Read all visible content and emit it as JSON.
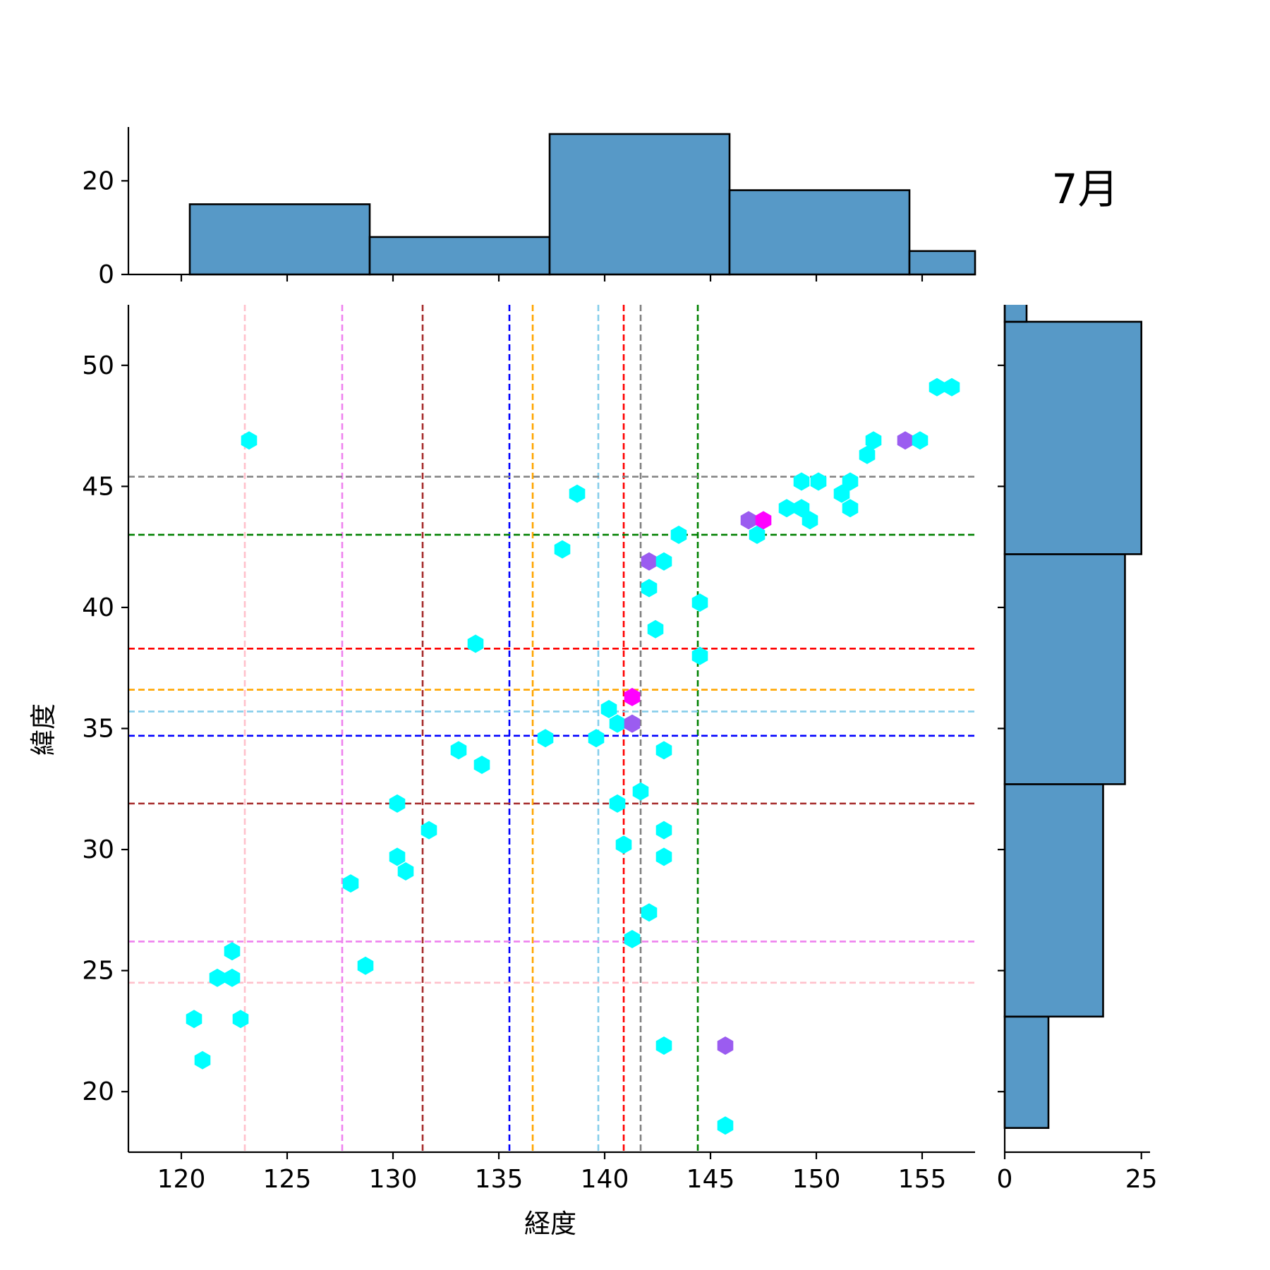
{
  "chart_data": {
    "type": "scatter",
    "subtype": "jointplot-hexbin-with-marginal-histograms",
    "annotation": "7月",
    "xlabel": "経度",
    "ylabel": "緯度",
    "xlim": [
      117.5,
      157.5
    ],
    "ylim": [
      17.5,
      52.5
    ],
    "xticks": [
      120,
      125,
      130,
      135,
      140,
      145,
      150,
      155
    ],
    "yticks": [
      20,
      25,
      30,
      35,
      40,
      45,
      50
    ],
    "grid": false,
    "hex_colors": {
      "low": "#00ffff",
      "mid": "#9b5cf0",
      "high": "#ff00ff"
    },
    "hex_points": [
      {
        "x": 123.2,
        "y": 46.9,
        "level": "low"
      },
      {
        "x": 120.6,
        "y": 23.0,
        "level": "low"
      },
      {
        "x": 121.0,
        "y": 21.3,
        "level": "low"
      },
      {
        "x": 121.7,
        "y": 24.7,
        "level": "low"
      },
      {
        "x": 122.4,
        "y": 24.7,
        "level": "low"
      },
      {
        "x": 122.4,
        "y": 25.8,
        "level": "low"
      },
      {
        "x": 122.8,
        "y": 23.0,
        "level": "low"
      },
      {
        "x": 128.0,
        "y": 28.6,
        "level": "low"
      },
      {
        "x": 128.7,
        "y": 25.2,
        "level": "low"
      },
      {
        "x": 130.2,
        "y": 31.9,
        "level": "low"
      },
      {
        "x": 130.2,
        "y": 29.7,
        "level": "low"
      },
      {
        "x": 130.6,
        "y": 29.1,
        "level": "low"
      },
      {
        "x": 131.7,
        "y": 30.8,
        "level": "low"
      },
      {
        "x": 133.1,
        "y": 34.1,
        "level": "low"
      },
      {
        "x": 134.2,
        "y": 33.5,
        "level": "low"
      },
      {
        "x": 133.9,
        "y": 38.5,
        "level": "low"
      },
      {
        "x": 137.2,
        "y": 34.6,
        "level": "low"
      },
      {
        "x": 138.0,
        "y": 42.4,
        "level": "low"
      },
      {
        "x": 138.7,
        "y": 44.7,
        "level": "low"
      },
      {
        "x": 139.6,
        "y": 34.6,
        "level": "low"
      },
      {
        "x": 140.2,
        "y": 35.8,
        "level": "low"
      },
      {
        "x": 140.6,
        "y": 35.2,
        "level": "low"
      },
      {
        "x": 140.6,
        "y": 31.9,
        "level": "low"
      },
      {
        "x": 140.9,
        "y": 30.2,
        "level": "low"
      },
      {
        "x": 141.3,
        "y": 36.3,
        "level": "high"
      },
      {
        "x": 141.3,
        "y": 35.2,
        "level": "mid"
      },
      {
        "x": 141.3,
        "y": 26.3,
        "level": "low"
      },
      {
        "x": 141.7,
        "y": 32.4,
        "level": "low"
      },
      {
        "x": 142.1,
        "y": 27.4,
        "level": "low"
      },
      {
        "x": 142.1,
        "y": 40.8,
        "level": "low"
      },
      {
        "x": 142.1,
        "y": 41.9,
        "level": "mid"
      },
      {
        "x": 142.4,
        "y": 39.1,
        "level": "low"
      },
      {
        "x": 142.8,
        "y": 41.9,
        "level": "low"
      },
      {
        "x": 142.8,
        "y": 34.1,
        "level": "low"
      },
      {
        "x": 142.8,
        "y": 30.8,
        "level": "low"
      },
      {
        "x": 142.8,
        "y": 29.7,
        "level": "low"
      },
      {
        "x": 142.8,
        "y": 21.9,
        "level": "low"
      },
      {
        "x": 143.5,
        "y": 43.0,
        "level": "low"
      },
      {
        "x": 144.5,
        "y": 40.2,
        "level": "low"
      },
      {
        "x": 144.5,
        "y": 38.0,
        "level": "low"
      },
      {
        "x": 145.7,
        "y": 21.9,
        "level": "mid"
      },
      {
        "x": 145.7,
        "y": 18.6,
        "level": "low"
      },
      {
        "x": 146.8,
        "y": 43.6,
        "level": "mid"
      },
      {
        "x": 147.2,
        "y": 43.0,
        "level": "low"
      },
      {
        "x": 147.5,
        "y": 43.6,
        "level": "high"
      },
      {
        "x": 148.6,
        "y": 44.1,
        "level": "low"
      },
      {
        "x": 149.3,
        "y": 44.1,
        "level": "low"
      },
      {
        "x": 149.3,
        "y": 45.2,
        "level": "low"
      },
      {
        "x": 149.7,
        "y": 43.6,
        "level": "low"
      },
      {
        "x": 150.1,
        "y": 45.2,
        "level": "low"
      },
      {
        "x": 151.2,
        "y": 44.7,
        "level": "low"
      },
      {
        "x": 151.6,
        "y": 44.1,
        "level": "low"
      },
      {
        "x": 151.6,
        "y": 45.2,
        "level": "low"
      },
      {
        "x": 152.4,
        "y": 46.3,
        "level": "low"
      },
      {
        "x": 152.7,
        "y": 46.9,
        "level": "low"
      },
      {
        "x": 154.2,
        "y": 46.9,
        "level": "mid"
      },
      {
        "x": 154.9,
        "y": 46.9,
        "level": "low"
      },
      {
        "x": 155.7,
        "y": 49.1,
        "level": "low"
      },
      {
        "x": 156.4,
        "y": 49.1,
        "level": "low"
      }
    ],
    "vlines": [
      {
        "x": 123.0,
        "color": "#ffc0cb"
      },
      {
        "x": 127.6,
        "color": "#ee82ee"
      },
      {
        "x": 131.4,
        "color": "#a52a2a"
      },
      {
        "x": 135.5,
        "color": "#0000ff"
      },
      {
        "x": 136.6,
        "color": "#ffa500"
      },
      {
        "x": 139.7,
        "color": "#87ceeb"
      },
      {
        "x": 140.9,
        "color": "#ff0000"
      },
      {
        "x": 141.7,
        "color": "#808080"
      },
      {
        "x": 144.4,
        "color": "#008000"
      }
    ],
    "hlines": [
      {
        "y": 45.4,
        "color": "#808080"
      },
      {
        "y": 43.0,
        "color": "#008000"
      },
      {
        "y": 38.3,
        "color": "#ff0000"
      },
      {
        "y": 36.6,
        "color": "#ffa500"
      },
      {
        "y": 35.7,
        "color": "#87ceeb"
      },
      {
        "y": 34.7,
        "color": "#0000ff"
      },
      {
        "y": 31.9,
        "color": "#a52a2a"
      },
      {
        "y": 26.2,
        "color": "#ee82ee"
      },
      {
        "y": 24.5,
        "color": "#ffc0cb"
      }
    ],
    "top_histogram": {
      "yticks": [
        0,
        20
      ],
      "bins": [
        {
          "x0": 120.4,
          "x1": 128.9,
          "count": 15
        },
        {
          "x0": 128.9,
          "x1": 137.4,
          "count": 8
        },
        {
          "x0": 137.4,
          "x1": 145.9,
          "count": 30
        },
        {
          "x0": 145.9,
          "x1": 154.4,
          "count": 18
        },
        {
          "x0": 154.4,
          "x1": 162.9,
          "count": 5
        }
      ],
      "ylim": [
        0,
        31.5
      ]
    },
    "right_histogram": {
      "xticks": [
        0,
        25
      ],
      "bins": [
        {
          "y0": 18.5,
          "y1": 23.1,
          "count": 8
        },
        {
          "y0": 23.1,
          "y1": 32.7,
          "count": 18
        },
        {
          "y0": 32.7,
          "y1": 42.2,
          "count": 22
        },
        {
          "y0": 42.2,
          "y1": 51.8,
          "count": 25
        },
        {
          "y0": 51.8,
          "y1": 53.5,
          "count": 4
        }
      ],
      "xlim": [
        0,
        26.2
      ]
    },
    "bar_color": "#5799c7"
  }
}
